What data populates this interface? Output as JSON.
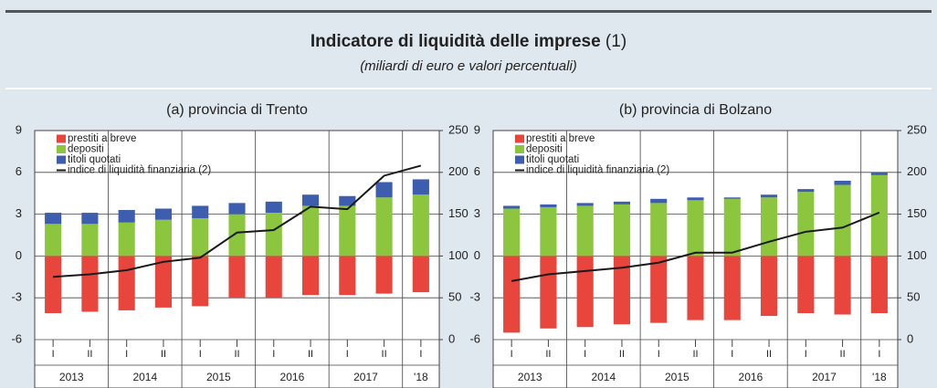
{
  "header": {
    "title": "Indicatore di liquidità delle imprese",
    "title_note": "(1)",
    "subtitle": "(miliardi di euro e valori percentuali)"
  },
  "chart_data": [
    {
      "type": "bar",
      "title": "(a) provincia di Trento",
      "categories": [
        "I",
        "II",
        "I",
        "II",
        "I",
        "II",
        "I",
        "II",
        "I",
        "II",
        "I"
      ],
      "groups": [
        {
          "label": "2013",
          "span": 2
        },
        {
          "label": "2014",
          "span": 2
        },
        {
          "label": "2015",
          "span": 2
        },
        {
          "label": "2016",
          "span": 2
        },
        {
          "label": "2017",
          "span": 2
        },
        {
          "label": "'18",
          "span": 1
        }
      ],
      "series": [
        {
          "name": "prestiti a breve",
          "color": "#e8463c",
          "values": [
            -4.1,
            -4.0,
            -3.9,
            -3.7,
            -3.6,
            -3.0,
            -3.0,
            -2.8,
            -2.8,
            -2.7,
            -2.6
          ]
        },
        {
          "name": "depositi",
          "color": "#8cc63e",
          "values": [
            2.3,
            2.3,
            2.4,
            2.6,
            2.7,
            3.0,
            3.1,
            3.6,
            3.6,
            4.2,
            4.4
          ]
        },
        {
          "name": "titoli quotati",
          "color": "#3d5daf",
          "values": [
            0.8,
            0.8,
            0.9,
            0.8,
            0.9,
            0.8,
            0.8,
            0.8,
            0.7,
            1.1,
            1.1
          ]
        },
        {
          "name": "indice di liquidità finanziaria (2)",
          "color": "#1a1a1a",
          "type": "line",
          "axis": "y2",
          "values": [
            75,
            78,
            83,
            93,
            98,
            128,
            131,
            159,
            156,
            196,
            208
          ]
        }
      ],
      "ylim": [
        -6,
        9
      ],
      "yticks": [
        -6,
        -3,
        0,
        3,
        6,
        9
      ],
      "y2lim": [
        0,
        250
      ],
      "y2ticks": [
        0,
        50,
        100,
        150,
        200,
        250
      ],
      "grid": true,
      "legend": "top-left"
    },
    {
      "type": "bar",
      "title": "(b) provincia di Bolzano",
      "categories": [
        "I",
        "II",
        "I",
        "II",
        "I",
        "II",
        "I",
        "II",
        "I",
        "II",
        "I"
      ],
      "groups": [
        {
          "label": "2013",
          "span": 2
        },
        {
          "label": "2014",
          "span": 2
        },
        {
          "label": "2015",
          "span": 2
        },
        {
          "label": "2016",
          "span": 2
        },
        {
          "label": "2017",
          "span": 2
        },
        {
          "label": "'18",
          "span": 1
        }
      ],
      "series": [
        {
          "name": "prestiti a breve",
          "color": "#e8463c",
          "values": [
            -5.5,
            -5.2,
            -5.1,
            -4.9,
            -4.8,
            -4.6,
            -4.6,
            -4.3,
            -4.1,
            -4.2,
            -4.1
          ]
        },
        {
          "name": "depositi",
          "color": "#8cc63e",
          "values": [
            3.4,
            3.5,
            3.6,
            3.7,
            3.8,
            4.0,
            4.1,
            4.2,
            4.6,
            5.1,
            5.8
          ]
        },
        {
          "name": "titoli quotati",
          "color": "#3d5daf",
          "values": [
            0.2,
            0.2,
            0.2,
            0.2,
            0.3,
            0.2,
            0.1,
            0.2,
            0.2,
            0.3,
            0.2
          ]
        },
        {
          "name": "indice di liquidità finanziaria (2)",
          "color": "#1a1a1a",
          "type": "line",
          "axis": "y2",
          "values": [
            70,
            78,
            82,
            86,
            92,
            104,
            104,
            117,
            129,
            134,
            152
          ]
        }
      ],
      "ylim": [
        -6,
        9
      ],
      "yticks": [
        -6,
        -3,
        0,
        3,
        6,
        9
      ],
      "y2lim": [
        0,
        250
      ],
      "y2ticks": [
        0,
        50,
        100,
        150,
        200,
        250
      ],
      "grid": true,
      "legend": "top-left"
    }
  ]
}
